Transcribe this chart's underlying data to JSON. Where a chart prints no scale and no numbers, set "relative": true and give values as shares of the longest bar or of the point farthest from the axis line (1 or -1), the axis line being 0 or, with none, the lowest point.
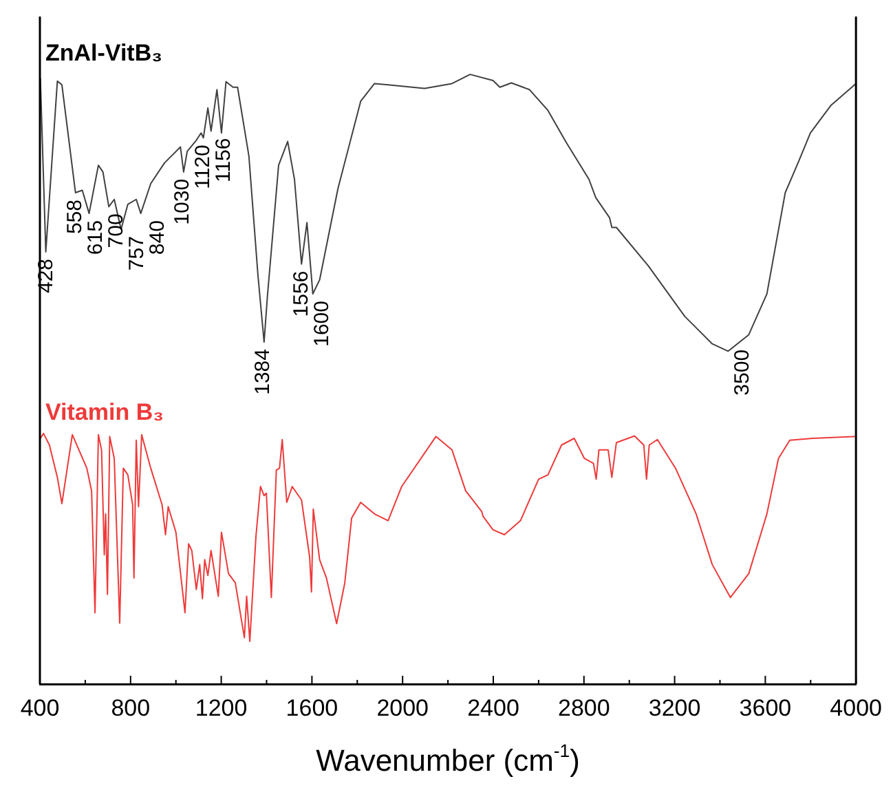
{
  "chart_data": {
    "type": "line",
    "relative": true,
    "xlabel": "Wavenumber (cm$^{-1}$)",
    "xlim": [
      400,
      4000
    ],
    "tick_labels": "x",
    "xticks": [
      400,
      {
        "value": 600,
        "label": null
      },
      800,
      {
        "value": 1000,
        "label": null
      },
      1200,
      {
        "value": 1400,
        "label": null
      },
      1600,
      {
        "value": 1800,
        "label": null
      },
      2000,
      {
        "value": 2200,
        "label": null
      },
      2400,
      {
        "value": 2600,
        "label": null
      },
      2800,
      {
        "value": 3000,
        "label": null
      },
      3200,
      {
        "value": 3400,
        "label": null
      },
      3600,
      {
        "value": 3800,
        "label": null
      },
      4000
    ],
    "series": [
      {
        "name": "ZnAl-VitB₃",
        "color": "#404040",
        "x": [
          402,
          426,
          477,
          497,
          557,
          587,
          617,
          658,
          678,
          704,
          728,
          758,
          788,
          825,
          845,
          889,
          950,
          1020,
          1034,
          1050,
          1090,
          1111,
          1121,
          1141,
          1155,
          1181,
          1201,
          1221,
          1252,
          1272,
          1322,
          1362,
          1389,
          1403,
          1453,
          1493,
          1523,
          1554,
          1578,
          1604,
          1634,
          1715,
          1815,
          1876,
          1936,
          2097,
          2218,
          2298,
          2399,
          2429,
          2480,
          2560,
          2641,
          2721,
          2822,
          2852,
          2913,
          2923,
          2943,
          3084,
          3245,
          3366,
          3436,
          3527,
          3607,
          3688,
          3748,
          3799,
          3889,
          4000
        ],
        "values": [
          0.994,
          0.709,
          0.989,
          0.983,
          0.806,
          0.81,
          0.772,
          0.851,
          0.84,
          0.783,
          0.795,
          0.746,
          0.787,
          0.795,
          0.772,
          0.821,
          0.855,
          0.881,
          0.84,
          0.874,
          0.892,
          0.904,
          0.896,
          0.945,
          0.907,
          0.975,
          0.904,
          0.988,
          0.979,
          0.979,
          0.866,
          0.67,
          0.561,
          0.633,
          0.851,
          0.89,
          0.828,
          0.689,
          0.757,
          0.64,
          0.663,
          0.813,
          0.956,
          0.985,
          0.983,
          0.977,
          0.985,
          1,
          0.99,
          0.979,
          0.986,
          0.975,
          0.941,
          0.889,
          0.828,
          0.798,
          0.765,
          0.749,
          0.749,
          0.686,
          0.603,
          0.558,
          0.546,
          0.573,
          0.64,
          0.806,
          0.858,
          0.904,
          0.949,
          0.985
        ]
      },
      {
        "name": "Vitamin B₃",
        "color": "#ee3a3a",
        "x": [
          402,
          416,
          442,
          477,
          497,
          543,
          607,
          628,
          643,
          658,
          672,
          684,
          690,
          698,
          708,
          728,
          752,
          768,
          788,
          809,
          815,
          825,
          835,
          849,
          889,
          939,
          954,
          966,
          1000,
          1040,
          1056,
          1070,
          1090,
          1105,
          1117,
          1127,
          1141,
          1155,
          1187,
          1201,
          1232,
          1262,
          1302,
          1312,
          1326,
          1353,
          1373,
          1389,
          1399,
          1421,
          1443,
          1457,
          1469,
          1489,
          1513,
          1554,
          1590,
          1598,
          1606,
          1634,
          1664,
          1709,
          1745,
          1775,
          1815,
          1876,
          1936,
          1996,
          2147,
          2218,
          2278,
          2349,
          2355,
          2399,
          2449,
          2520,
          2600,
          2641,
          2701,
          2757,
          2802,
          2842,
          2854,
          2866,
          2907,
          2923,
          2943,
          3023,
          3064,
          3076,
          3088,
          3124,
          3204,
          3295,
          3366,
          3446,
          3527,
          3607,
          3658,
          3708,
          3808,
          4000
        ],
        "values": [
          0.403,
          0.411,
          0.392,
          0.339,
          0.296,
          0.409,
          0.354,
          0.317,
          0.117,
          0.409,
          0.384,
          0.212,
          0.279,
          0.147,
          0.406,
          0.37,
          0.1,
          0.354,
          0.343,
          0.294,
          0.174,
          0.4,
          0.291,
          0.409,
          0.354,
          0.294,
          0.245,
          0.291,
          0.249,
          0.117,
          0.23,
          0.219,
          0.155,
          0.196,
          0.14,
          0.204,
          0.178,
          0.219,
          0.144,
          0.249,
          0.181,
          0.166,
          0.076,
          0.144,
          0.07,
          0.242,
          0.324,
          0.309,
          0.313,
          0.142,
          0.351,
          0.354,
          0.401,
          0.298,
          0.324,
          0.302,
          0.208,
          0.151,
          0.287,
          0.204,
          0.174,
          0.099,
          0.166,
          0.272,
          0.298,
          0.279,
          0.268,
          0.324,
          0.406,
          0.384,
          0.317,
          0.283,
          0.275,
          0.253,
          0.245,
          0.268,
          0.336,
          0.343,
          0.392,
          0.403,
          0.37,
          0.362,
          0.336,
          0.384,
          0.384,
          0.339,
          0.396,
          0.407,
          0.392,
          0.336,
          0.392,
          0.401,
          0.354,
          0.279,
          0.196,
          0.142,
          0.181,
          0.279,
          0.37,
          0.4,
          0.403,
          0.406
        ]
      }
    ],
    "annotations": [
      {
        "text": "428",
        "x": 428,
        "y": 0.709
      },
      {
        "text": "558",
        "x": 558,
        "y": 0.806
      },
      {
        "text": "615",
        "x": 615,
        "y": 0.772
      },
      {
        "text": "700",
        "x": 700,
        "y": 0.783
      },
      {
        "text": "757",
        "x": 757,
        "y": 0.746
      },
      {
        "text": "840",
        "x": 840,
        "y": 0.772
      },
      {
        "text": "1030",
        "x": 1030,
        "y": 0.84
      },
      {
        "text": "1120",
        "x": 1120,
        "y": 0.896
      },
      {
        "text": "1156",
        "x": 1156,
        "y": 0.907
      },
      {
        "text": "1384",
        "x": 1384,
        "y": 0.561
      },
      {
        "text": "1556",
        "x": 1556,
        "y": 0.689
      },
      {
        "text": "1600",
        "x": 1600,
        "y": 0.64
      },
      {
        "text": "3500",
        "x": 3500,
        "y": 0.56
      }
    ]
  }
}
